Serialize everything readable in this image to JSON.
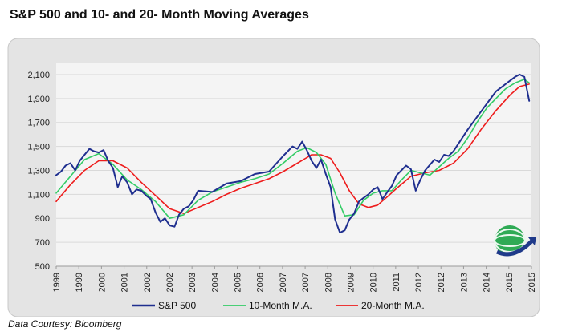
{
  "page": {
    "title": "S&P 500 and 10- and 20- Month Moving Averages",
    "credit": "Data Courtesy: Bloomberg",
    "logo_icon": "globe-swoosh-logo"
  },
  "chart_data": {
    "type": "line",
    "title": "S&P 500 and 10- and 20- Month Moving Averages",
    "xlabel": "",
    "ylabel": "",
    "x_tick_labels": [
      "1999",
      "1999",
      "2000",
      "2001",
      "2002",
      "2002",
      "2003",
      "2004",
      "2005",
      "2006",
      "2007",
      "2007",
      "2008",
      "2009",
      "2010",
      "2011",
      "2012",
      "2012",
      "2013",
      "2014",
      "2015",
      "2015"
    ],
    "y_tick_labels": [
      "2,100",
      "1,900",
      "1,700",
      "1,500",
      "1,300",
      "1,100",
      "900",
      "700",
      "500"
    ],
    "ylim": [
      500,
      2200
    ],
    "xlim": [
      1999.0,
      2015.75
    ],
    "grid": true,
    "legend_position": "bottom",
    "colors": {
      "sp500": "#1f2f8f",
      "ma10": "#33cc66",
      "ma20": "#ee1c1c",
      "plot_bg": "#f4f4f4",
      "frame_bg": "#e4e4e4"
    },
    "series": [
      {
        "name": "S&P 500",
        "x": [
          1999.0,
          1999.17,
          1999.33,
          1999.5,
          1999.67,
          1999.83,
          2000.0,
          2000.17,
          2000.33,
          2000.5,
          2000.67,
          2000.83,
          2001.0,
          2001.17,
          2001.33,
          2001.5,
          2001.67,
          2001.83,
          2002.0,
          2002.17,
          2002.33,
          2002.5,
          2002.67,
          2002.83,
          2003.0,
          2003.17,
          2003.33,
          2003.5,
          2003.67,
          2003.83,
          2004.0,
          2004.5,
          2005.0,
          2005.5,
          2006.0,
          2006.5,
          2007.0,
          2007.33,
          2007.5,
          2007.67,
          2007.83,
          2008.0,
          2008.17,
          2008.33,
          2008.5,
          2008.67,
          2008.83,
          2009.0,
          2009.17,
          2009.33,
          2009.5,
          2009.67,
          2009.83,
          2010.0,
          2010.17,
          2010.33,
          2010.5,
          2010.67,
          2010.83,
          2011.0,
          2011.33,
          2011.5,
          2011.67,
          2011.83,
          2012.0,
          2012.33,
          2012.5,
          2012.67,
          2012.83,
          2013.0,
          2013.5,
          2014.0,
          2014.5,
          2015.0,
          2015.17,
          2015.33,
          2015.5,
          2015.67
        ],
        "values": [
          1260,
          1290,
          1340,
          1360,
          1300,
          1380,
          1430,
          1480,
          1460,
          1450,
          1470,
          1380,
          1320,
          1160,
          1250,
          1200,
          1100,
          1140,
          1130,
          1090,
          1060,
          950,
          870,
          900,
          840,
          830,
          930,
          980,
          1000,
          1050,
          1130,
          1120,
          1190,
          1210,
          1270,
          1290,
          1420,
          1500,
          1480,
          1540,
          1470,
          1380,
          1320,
          1390,
          1270,
          1160,
          890,
          780,
          800,
          890,
          940,
          1040,
          1070,
          1100,
          1140,
          1160,
          1060,
          1120,
          1170,
          1260,
          1340,
          1310,
          1130,
          1220,
          1300,
          1390,
          1370,
          1430,
          1420,
          1460,
          1640,
          1800,
          1960,
          2050,
          2080,
          2100,
          2080,
          1880
        ],
        "color": "#1f2f8f"
      },
      {
        "name": "10-Month M.A.",
        "x": [
          1999.0,
          1999.5,
          2000.0,
          2000.5,
          2001.0,
          2001.5,
          2002.0,
          2002.5,
          2003.0,
          2003.5,
          2004.0,
          2004.5,
          2005.0,
          2005.5,
          2006.0,
          2006.5,
          2007.0,
          2007.5,
          2007.83,
          2008.17,
          2008.5,
          2008.83,
          2009.17,
          2009.5,
          2009.83,
          2010.17,
          2010.5,
          2010.83,
          2011.17,
          2011.5,
          2011.83,
          2012.17,
          2012.5,
          2012.83,
          2013.17,
          2013.5,
          2013.83,
          2014.17,
          2014.5,
          2014.83,
          2015.17,
          2015.5,
          2015.67
        ],
        "values": [
          1110,
          1250,
          1390,
          1440,
          1350,
          1220,
          1140,
          1040,
          900,
          930,
          1050,
          1120,
          1160,
          1200,
          1230,
          1270,
          1360,
          1460,
          1490,
          1450,
          1350,
          1110,
          920,
          930,
          1050,
          1110,
          1130,
          1130,
          1220,
          1300,
          1280,
          1260,
          1330,
          1400,
          1460,
          1570,
          1700,
          1820,
          1900,
          1980,
          2030,
          2060,
          2030
        ],
        "color": "#33cc66"
      },
      {
        "name": "20-Month M.A.",
        "x": [
          1999.0,
          1999.5,
          2000.0,
          2000.5,
          2001.0,
          2001.5,
          2002.0,
          2002.5,
          2003.0,
          2003.5,
          2004.0,
          2004.5,
          2005.0,
          2005.5,
          2006.0,
          2006.5,
          2007.0,
          2007.5,
          2008.0,
          2008.33,
          2008.67,
          2009.0,
          2009.33,
          2009.67,
          2010.0,
          2010.33,
          2010.67,
          2011.0,
          2011.5,
          2012.0,
          2012.5,
          2013.0,
          2013.5,
          2014.0,
          2014.5,
          2015.0,
          2015.33,
          2015.67
        ],
        "values": [
          1040,
          1180,
          1300,
          1380,
          1380,
          1320,
          1200,
          1090,
          980,
          940,
          990,
          1040,
          1100,
          1150,
          1190,
          1230,
          1290,
          1360,
          1430,
          1430,
          1400,
          1280,
          1130,
          1020,
          990,
          1010,
          1080,
          1150,
          1250,
          1280,
          1300,
          1360,
          1480,
          1650,
          1800,
          1930,
          2000,
          2020
        ],
        "color": "#ee1c1c"
      }
    ]
  }
}
